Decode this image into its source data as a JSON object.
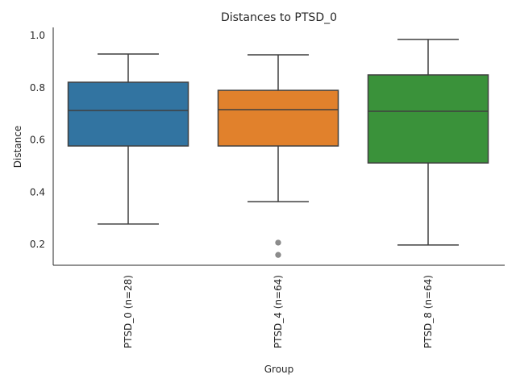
{
  "chart_data": {
    "type": "box",
    "title": "Distances to PTSD_0",
    "xlabel": "Group",
    "ylabel": "Distance",
    "ylim": [
      0.12,
      1.03
    ],
    "yticks": [
      0.2,
      0.4,
      0.6,
      0.8,
      1.0
    ],
    "ytick_labels": [
      "0.2",
      "0.4",
      "0.6",
      "0.8",
      "1.0"
    ],
    "grid": false,
    "categories": [
      "PTSD_0 (n=28)",
      "PTSD_4 (n=64)",
      "PTSD_8 (n=64)"
    ],
    "boxes": [
      {
        "name": "PTSD_0 (n=28)",
        "color": "#3274a1",
        "whisker_low": 0.278,
        "q1": 0.577,
        "median": 0.713,
        "q3": 0.821,
        "whisker_high": 0.929,
        "outliers": []
      },
      {
        "name": "PTSD_4 (n=64)",
        "color": "#e1812c",
        "whisker_low": 0.364,
        "q1": 0.577,
        "median": 0.716,
        "q3": 0.79,
        "whisker_high": 0.926,
        "outliers": [
          0.207,
          0.16
        ]
      },
      {
        "name": "PTSD_8 (n=64)",
        "color": "#3a923a",
        "whisker_low": 0.198,
        "q1": 0.512,
        "median": 0.71,
        "q3": 0.849,
        "whisker_high": 0.985,
        "outliers": []
      }
    ]
  }
}
